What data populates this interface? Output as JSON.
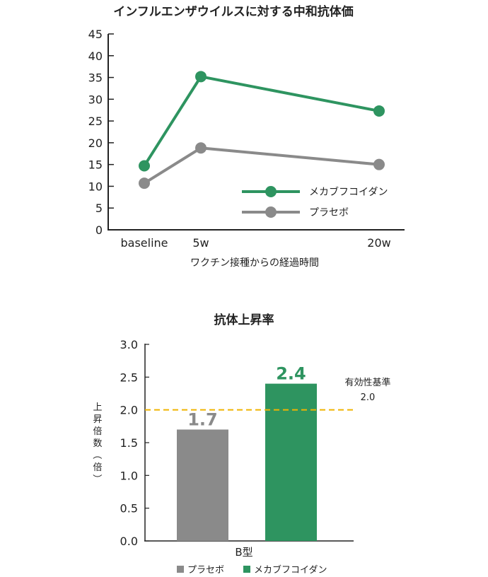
{
  "chart_data": [
    {
      "type": "line",
      "title": "インフルエンザウイルスに対する中和抗体価",
      "xlabel": "ワクチン接種からの経過時間",
      "ylabel": "",
      "categories": [
        "baseline",
        "5w",
        "20w"
      ],
      "ylim": [
        0,
        45
      ],
      "yticks": [
        "0",
        "5",
        "10",
        "15",
        "20",
        "25",
        "30",
        "35",
        "40",
        "45"
      ],
      "grid": false,
      "legend_position": "bottom-right",
      "series": [
        {
          "name": "メカブフコイダン",
          "color": "#2e9460",
          "values": [
            14.7,
            35.2,
            27.3
          ]
        },
        {
          "name": "プラセボ",
          "color": "#8a8a8a",
          "values": [
            10.7,
            18.8,
            15.0
          ]
        }
      ]
    },
    {
      "type": "bar",
      "title": "抗体上昇率",
      "xlabel": "B型",
      "ylabel": "上昇倍数（倍）",
      "ylim": [
        0,
        3.0
      ],
      "yticks": [
        "0.0",
        "0.5",
        "1.0",
        "1.5",
        "2.0",
        "2.5",
        "3.0"
      ],
      "grid": false,
      "legend_position": "bottom",
      "series": [
        {
          "name": "プラセボ",
          "color": "#8a8a8a",
          "value": 1.7,
          "label": "1.7"
        },
        {
          "name": "メカブフコイダン",
          "color": "#2e9460",
          "value": 2.4,
          "label": "2.4"
        }
      ],
      "reference_line": {
        "value": 2.0,
        "color": "#f0b400",
        "label_line1": "有効性基準",
        "label_line2": "2.0"
      }
    }
  ]
}
